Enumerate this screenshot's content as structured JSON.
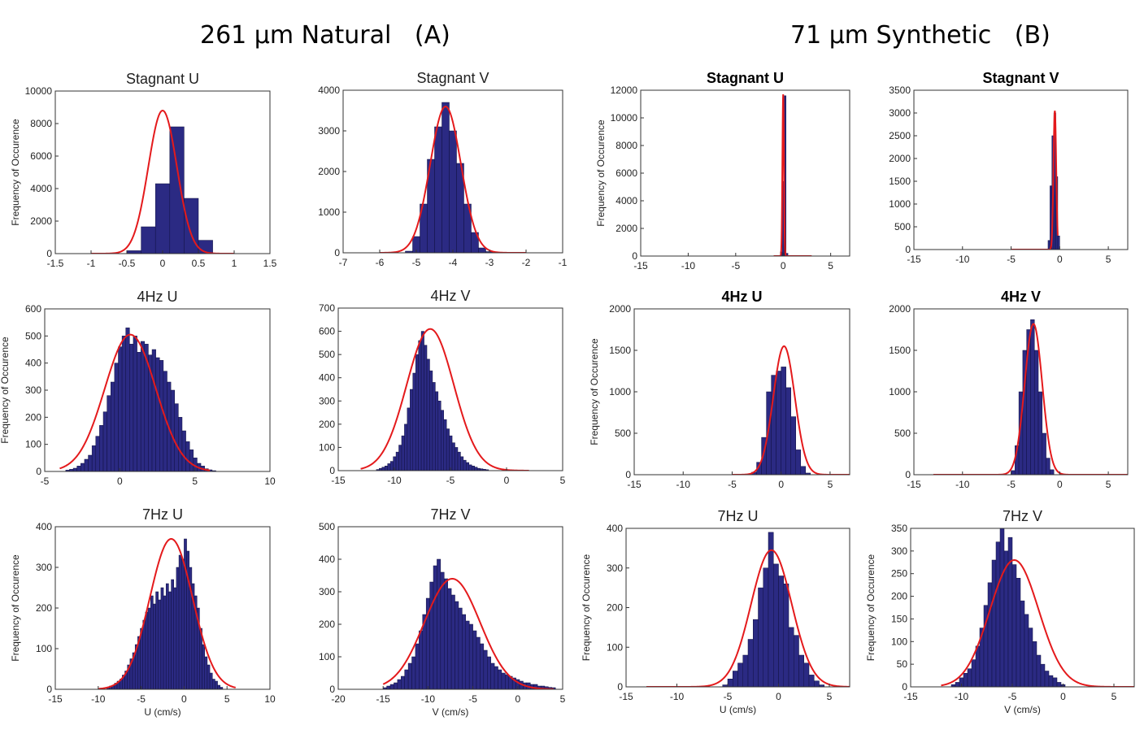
{
  "group_titles": [
    {
      "text": "261 μm Natural   (A)"
    },
    {
      "text": "71 μm Synthetic   (B)"
    }
  ],
  "colors": {
    "bar_fill": "#2b2a83",
    "bar_edge": "#101040",
    "fit_line": "#e41a1c",
    "axis": "#333333"
  },
  "chart_data": [
    {
      "type": "bar",
      "group": "A",
      "title": "Stagnant U",
      "bold": false,
      "ylabel": "Frequency of Occurence",
      "xlabel": "",
      "xlim": [
        -1.5,
        1.5
      ],
      "ylim": [
        0,
        10000
      ],
      "xticks": [
        "-1.5",
        "-1",
        "-0.5",
        "0",
        "0.5",
        "1",
        "1.5"
      ],
      "yticks": [
        "0",
        "2000",
        "4000",
        "6000",
        "8000",
        "10000"
      ],
      "histogram": {
        "start": -0.5,
        "bin_width": 0.2,
        "values": [
          180,
          1650,
          4300,
          7800,
          3400,
          820,
          20
        ]
      },
      "fit": {
        "mean": 0,
        "sd": 0.2,
        "peak": 8800,
        "range": [
          -1,
          1
        ]
      }
    },
    {
      "type": "bar",
      "group": "A",
      "title": "Stagnant V",
      "bold": false,
      "ylabel": "",
      "xlabel": "",
      "xlim": [
        -7,
        -1
      ],
      "ylim": [
        0,
        4000
      ],
      "xticks": [
        "-7",
        "-6",
        "-5",
        "-4",
        "-3",
        "-2",
        "-1"
      ],
      "yticks": [
        "0",
        "1000",
        "2000",
        "3000",
        "4000"
      ],
      "histogram": {
        "start": -5.3,
        "bin_width": 0.2,
        "values": [
          40,
          400,
          1200,
          2300,
          3100,
          3700,
          3000,
          2200,
          1200,
          500,
          120,
          30
        ]
      },
      "fit": {
        "mean": -4.2,
        "sd": 0.42,
        "peak": 3600,
        "range": [
          -6,
          -2
        ]
      }
    },
    {
      "type": "bar",
      "group": "B",
      "title": "Stagnant U",
      "bold": true,
      "ylabel": "Frequency of Occurence",
      "xlabel": "",
      "xlim": [
        -15,
        7
      ],
      "ylim": [
        0,
        12000
      ],
      "xticks": [
        "-15",
        "-10",
        "-5",
        "0",
        "5"
      ],
      "yticks": [
        "0",
        "2000",
        "4000",
        "6000",
        "8000",
        "10000",
        "12000"
      ],
      "histogram": {
        "start": -0.3,
        "bin_width": 0.2,
        "values": [
          300,
          5400,
          11600,
          200
        ]
      },
      "fit": {
        "mean": 0,
        "sd": 0.08,
        "peak": 11700,
        "range": [
          -1,
          3
        ]
      }
    },
    {
      "type": "bar",
      "group": "B",
      "title": "Stagnant V",
      "bold": true,
      "ylabel": "",
      "xlabel": "",
      "xlim": [
        -15,
        7
      ],
      "ylim": [
        0,
        3500
      ],
      "xticks": [
        "-15",
        "-10",
        "-5",
        "0",
        "5"
      ],
      "yticks": [
        "0",
        "500",
        "1000",
        "1500",
        "2000",
        "2500",
        "3000",
        "3500"
      ],
      "histogram": {
        "start": -1.2,
        "bin_width": 0.2,
        "values": [
          200,
          1400,
          2500,
          3000,
          1600,
          300
        ]
      },
      "fit": {
        "mean": -0.5,
        "sd": 0.14,
        "peak": 3050,
        "range": [
          -5,
          -0.2
        ]
      }
    },
    {
      "type": "bar",
      "group": "A",
      "title": "4Hz U",
      "bold": false,
      "ylabel": "Frequency of Occurence",
      "xlabel": "",
      "xlim": [
        -5,
        10
      ],
      "ylim": [
        0,
        600
      ],
      "xticks": [
        "-5",
        "0",
        "5",
        "10"
      ],
      "yticks": [
        "0",
        "100",
        "200",
        "300",
        "400",
        "500",
        "600"
      ],
      "histogram": {
        "start": -3.6,
        "bin_width": 0.25,
        "values": [
          5,
          8,
          12,
          20,
          30,
          45,
          60,
          95,
          130,
          170,
          220,
          280,
          330,
          400,
          460,
          500,
          530,
          470,
          500,
          440,
          480,
          470,
          430,
          450,
          420,
          410,
          370,
          330,
          300,
          250,
          200,
          150,
          110,
          80,
          50,
          30,
          20,
          10,
          6,
          3
        ]
      },
      "fit": {
        "mean": 0.7,
        "sd": 1.7,
        "peak": 505,
        "range": [
          -4,
          6
        ]
      }
    },
    {
      "type": "bar",
      "group": "A",
      "title": "4Hz V",
      "bold": false,
      "ylabel": "",
      "xlabel": "",
      "xlim": [
        -15,
        5
      ],
      "ylim": [
        0,
        700
      ],
      "xticks": [
        "-15",
        "-10",
        "-5",
        "0",
        "5"
      ],
      "yticks": [
        "0",
        "100",
        "200",
        "300",
        "400",
        "500",
        "600",
        "700"
      ],
      "histogram": {
        "start": -11.6,
        "bin_width": 0.25,
        "values": [
          5,
          10,
          15,
          20,
          30,
          40,
          60,
          80,
          110,
          150,
          200,
          270,
          350,
          420,
          500,
          560,
          600,
          540,
          480,
          430,
          380,
          340,
          300,
          260,
          220,
          180,
          150,
          120,
          100,
          80,
          60,
          45,
          35,
          25,
          20,
          15,
          10,
          8,
          6,
          4
        ]
      },
      "fit": {
        "mean": -6.8,
        "sd": 2.1,
        "peak": 610,
        "range": [
          -13,
          2
        ]
      }
    },
    {
      "type": "bar",
      "group": "B",
      "title": "4Hz U",
      "bold": true,
      "ylabel": "Frequency of Occurence",
      "xlabel": "",
      "xlim": [
        -15,
        7
      ],
      "ylim": [
        0,
        2000
      ],
      "xticks": [
        "-15",
        "-10",
        "-5",
        "0",
        "5"
      ],
      "yticks": [
        "0",
        "500",
        "1000",
        "1500",
        "2000"
      ],
      "histogram": {
        "start": -3,
        "bin_width": 0.5,
        "values": [
          30,
          150,
          450,
          1000,
          1200,
          1250,
          1300,
          1050,
          700,
          300,
          100,
          20
        ]
      },
      "fit": {
        "mean": 0.3,
        "sd": 1.1,
        "peak": 1550,
        "range": [
          -5,
          7
        ]
      }
    },
    {
      "type": "bar",
      "group": "B",
      "title": "4Hz V",
      "bold": true,
      "ylabel": "",
      "xlabel": "",
      "xlim": [
        -15,
        7
      ],
      "ylim": [
        0,
        2000
      ],
      "xticks": [
        "-15",
        "-10",
        "-5",
        "0",
        "5"
      ],
      "yticks": [
        "0",
        "500",
        "1000",
        "1500",
        "2000"
      ],
      "histogram": {
        "start": -5,
        "bin_width": 0.4,
        "values": [
          50,
          350,
          1000,
          1500,
          1750,
          1870,
          1500,
          1000,
          500,
          200,
          60
        ]
      },
      "fit": {
        "mean": -2.7,
        "sd": 0.9,
        "peak": 1820,
        "range": [
          -13,
          7
        ]
      }
    },
    {
      "type": "bar",
      "group": "A",
      "title": "7Hz U",
      "bold": false,
      "ylabel": "Frequency of Occurence",
      "xlabel": "U (cm/s)",
      "xlim": [
        -15,
        10
      ],
      "ylim": [
        0,
        400
      ],
      "xticks": [
        "-15",
        "-10",
        "-5",
        "0",
        "5",
        "10"
      ],
      "yticks": [
        "0",
        "100",
        "200",
        "300",
        "400"
      ],
      "histogram": {
        "start": -9,
        "bin_width": 0.3,
        "values": [
          5,
          8,
          10,
          15,
          20,
          25,
          35,
          45,
          60,
          75,
          90,
          110,
          130,
          150,
          170,
          190,
          200,
          230,
          210,
          240,
          220,
          250,
          230,
          260,
          240,
          270,
          250,
          300,
          330,
          320,
          370,
          340,
          300,
          260,
          230,
          200,
          150,
          110,
          80,
          60,
          40,
          25,
          20,
          10,
          5
        ]
      },
      "fit": {
        "mean": -1.5,
        "sd": 2.5,
        "peak": 370,
        "range": [
          -10,
          6
        ]
      }
    },
    {
      "type": "bar",
      "group": "A",
      "title": "7Hz V",
      "bold": false,
      "ylabel": "",
      "xlabel": "V (cm/s)",
      "xlim": [
        -20,
        5
      ],
      "ylim": [
        0,
        500
      ],
      "xticks": [
        "-20",
        "-15",
        "-10",
        "-5",
        "0",
        "5"
      ],
      "yticks": [
        "0",
        "100",
        "200",
        "300",
        "400",
        "500"
      ],
      "histogram": {
        "start": -15,
        "bin_width": 0.4,
        "values": [
          5,
          10,
          15,
          20,
          30,
          40,
          60,
          80,
          100,
          140,
          180,
          230,
          280,
          330,
          380,
          400,
          360,
          340,
          310,
          290,
          270,
          250,
          230,
          210,
          200,
          180,
          160,
          140,
          120,
          100,
          80,
          70,
          60,
          50,
          45,
          40,
          35,
          30,
          25,
          20,
          20,
          15,
          15,
          10,
          10,
          8,
          6,
          5
        ]
      },
      "fit": {
        "mean": -7.3,
        "sd": 3.1,
        "peak": 340,
        "range": [
          -15,
          4
        ]
      }
    },
    {
      "type": "bar",
      "group": "B",
      "title": "7Hz U",
      "bold": false,
      "ylabel": "Frequency of Occurence",
      "xlabel": "U (cm/s)",
      "xlim": [
        -15,
        7
      ],
      "ylim": [
        0,
        400
      ],
      "xticks": [
        "-15",
        "-10",
        "-5",
        "0",
        "5"
      ],
      "yticks": [
        "0",
        "100",
        "200",
        "300",
        "400"
      ],
      "histogram": {
        "start": -5.5,
        "bin_width": 0.5,
        "values": [
          5,
          20,
          40,
          60,
          80,
          120,
          170,
          250,
          300,
          390,
          310,
          280,
          260,
          150,
          130,
          80,
          60,
          30,
          15,
          5
        ]
      },
      "fit": {
        "mean": -0.7,
        "sd": 2,
        "peak": 345,
        "range": [
          -13,
          7
        ]
      }
    },
    {
      "type": "bar",
      "group": "B",
      "title": "7Hz V",
      "bold": false,
      "ylabel": "Frequency of Occurence",
      "xlabel": "V (cm/s)",
      "xlim": [
        -15,
        7
      ],
      "ylim": [
        0,
        350
      ],
      "xticks": [
        "-15",
        "-10",
        "-5",
        "0",
        "5"
      ],
      "yticks": [
        "0",
        "50",
        "100",
        "150",
        "200",
        "250",
        "300",
        "350"
      ],
      "histogram": {
        "start": -11,
        "bin_width": 0.4,
        "values": [
          5,
          10,
          20,
          30,
          40,
          60,
          90,
          130,
          180,
          230,
          280,
          320,
          350,
          300,
          330,
          270,
          240,
          190,
          160,
          130,
          100,
          70,
          50,
          35,
          25,
          20,
          10,
          5
        ]
      },
      "fit": {
        "mean": -4.8,
        "sd": 2.4,
        "peak": 280,
        "range": [
          -12,
          7
        ]
      }
    }
  ]
}
